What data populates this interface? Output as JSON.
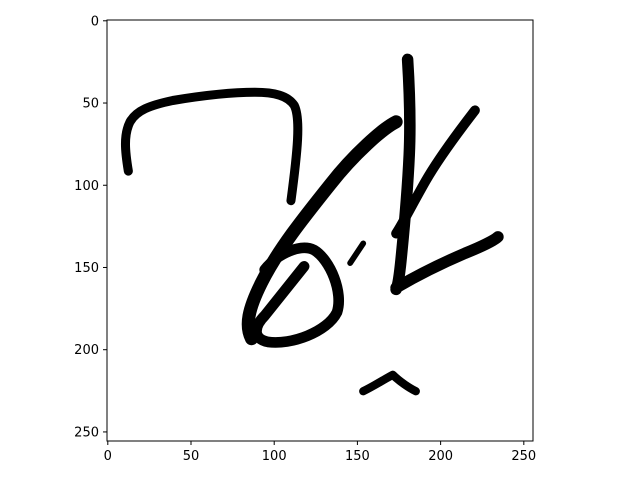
{
  "chart_data": {
    "type": "image",
    "content": "ink-stroke-glyph",
    "xlim": [
      0,
      256
    ],
    "ylim": [
      256,
      0
    ],
    "x_ticks": [
      0,
      50,
      100,
      150,
      200,
      250
    ],
    "y_ticks": [
      0,
      50,
      100,
      150,
      200,
      250
    ],
    "x_tick_labels": [
      "0",
      "50",
      "100",
      "150",
      "200",
      "250"
    ],
    "y_tick_labels": [
      "0",
      "50",
      "100",
      "150",
      "200",
      "250"
    ],
    "colors": {
      "ink": "#000000",
      "background": "#ffffff",
      "axes": "#000000"
    }
  }
}
